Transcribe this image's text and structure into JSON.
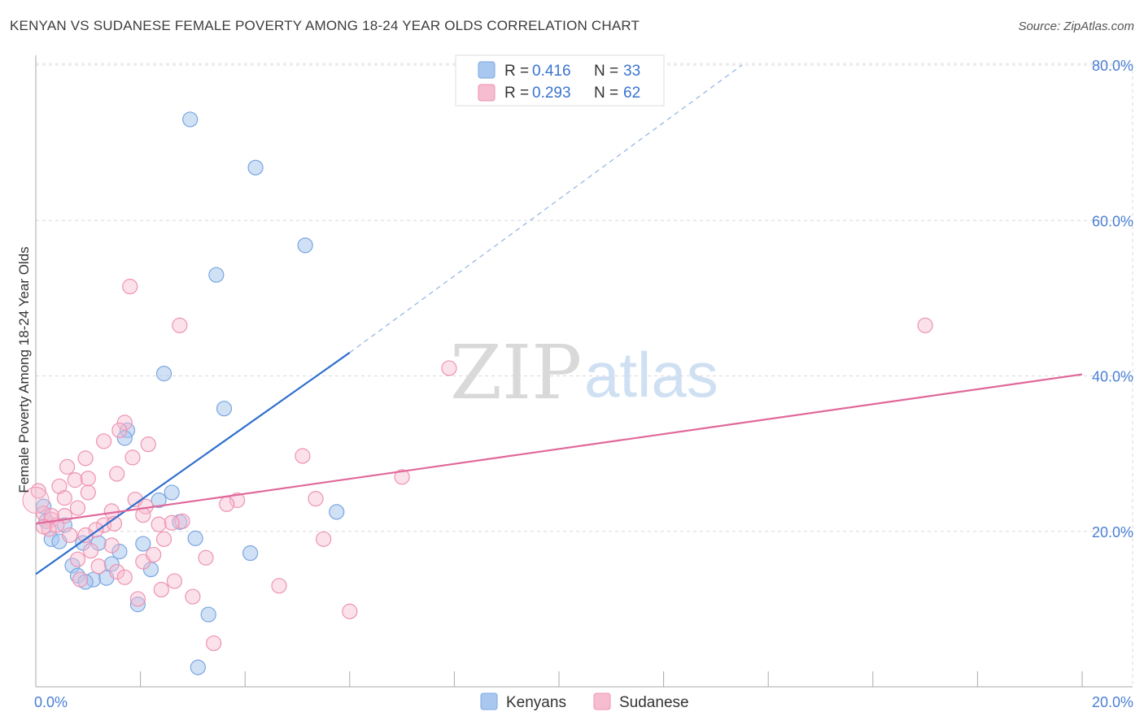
{
  "title": "KENYAN VS SUDANESE FEMALE POVERTY AMONG 18-24 YEAR OLDS CORRELATION CHART",
  "source": "Source: ZipAtlas.com",
  "watermark": {
    "part1": "ZIP",
    "part2": "atlas"
  },
  "legend": {
    "r_label": "R =",
    "n_label": "N =",
    "entries": [
      {
        "name": "Kenyans",
        "r": "0.416",
        "n": "33",
        "color": "#a9c8ef",
        "stroke": "#7aa6e0"
      },
      {
        "name": "Sudanese",
        "r": "0.293",
        "n": "62",
        "color": "#f6bcd0",
        "stroke": "#ee93b3"
      }
    ]
  },
  "chart_data": {
    "type": "scatter",
    "title": "KENYAN VS SUDANESE FEMALE POVERTY AMONG 18-24 YEAR OLDS CORRELATION CHART",
    "xlabel": "",
    "ylabel": "Female Poverty Among 18-24 Year Olds",
    "xlim": [
      0,
      20
    ],
    "ylim": [
      0,
      80
    ],
    "x_tick_labels": [
      "0.0%",
      "20.0%"
    ],
    "y_tick_labels": [
      "20.0%",
      "40.0%",
      "60.0%",
      "80.0%"
    ],
    "y_ticks": [
      20,
      40,
      60,
      80
    ],
    "grid": true,
    "legend_position": "top-center",
    "series": [
      {
        "name": "Kenyans",
        "color": "#4f86d6",
        "points": [
          [
            2.95,
            73.0
          ],
          [
            4.2,
            66.8
          ],
          [
            5.15,
            56.8
          ],
          [
            3.45,
            53.0
          ],
          [
            2.45,
            40.3
          ],
          [
            3.6,
            35.8
          ],
          [
            1.75,
            33.0
          ],
          [
            1.7,
            32.0
          ],
          [
            2.6,
            25.0
          ],
          [
            2.35,
            24.0
          ],
          [
            2.75,
            21.2
          ],
          [
            0.15,
            23.2
          ],
          [
            0.2,
            21.3
          ],
          [
            0.55,
            20.8
          ],
          [
            0.3,
            19.0
          ],
          [
            0.45,
            18.7
          ],
          [
            0.9,
            18.5
          ],
          [
            1.2,
            18.5
          ],
          [
            2.05,
            18.4
          ],
          [
            3.05,
            19.1
          ],
          [
            5.75,
            22.5
          ],
          [
            4.1,
            17.2
          ],
          [
            1.6,
            17.4
          ],
          [
            0.7,
            15.6
          ],
          [
            1.45,
            15.8
          ],
          [
            2.2,
            15.1
          ],
          [
            0.8,
            14.3
          ],
          [
            1.1,
            13.8
          ],
          [
            1.35,
            14.0
          ],
          [
            0.95,
            13.5
          ],
          [
            1.95,
            10.6
          ],
          [
            3.3,
            9.3
          ],
          [
            3.1,
            2.5
          ]
        ],
        "trend": {
          "x": [
            0.0,
            6.0
          ],
          "y": [
            14.5,
            43.0
          ],
          "dash_to": [
            13.5,
            80.0
          ]
        }
      },
      {
        "name": "Sudanese",
        "color": "#e26a97",
        "points": [
          [
            1.8,
            51.5
          ],
          [
            2.75,
            46.5
          ],
          [
            17.0,
            46.5
          ],
          [
            7.9,
            41.0
          ],
          [
            1.7,
            34.0
          ],
          [
            1.6,
            33.0
          ],
          [
            1.3,
            31.6
          ],
          [
            2.15,
            31.2
          ],
          [
            5.1,
            29.7
          ],
          [
            0.95,
            29.4
          ],
          [
            1.85,
            29.5
          ],
          [
            0.6,
            28.3
          ],
          [
            1.55,
            27.4
          ],
          [
            7.0,
            27.0
          ],
          [
            0.75,
            26.6
          ],
          [
            0.45,
            25.8
          ],
          [
            0.05,
            25.2
          ],
          [
            1.0,
            25.0
          ],
          [
            0.55,
            24.3
          ],
          [
            5.35,
            24.2
          ],
          [
            1.9,
            24.1
          ],
          [
            3.85,
            24.0
          ],
          [
            3.65,
            23.5
          ],
          [
            2.1,
            23.2
          ],
          [
            0.8,
            23.0
          ],
          [
            1.45,
            22.6
          ],
          [
            0.15,
            22.3
          ],
          [
            2.05,
            22.1
          ],
          [
            0.55,
            22.0
          ],
          [
            0.3,
            21.5
          ],
          [
            2.8,
            21.3
          ],
          [
            2.6,
            21.1
          ],
          [
            2.35,
            20.9
          ],
          [
            0.4,
            20.8
          ],
          [
            1.3,
            20.8
          ],
          [
            1.5,
            21.0
          ],
          [
            0.25,
            20.3
          ],
          [
            1.15,
            20.2
          ],
          [
            0.65,
            19.5
          ],
          [
            0.95,
            19.5
          ],
          [
            2.45,
            19.0
          ],
          [
            5.5,
            19.0
          ],
          [
            1.45,
            18.2
          ],
          [
            1.05,
            17.5
          ],
          [
            3.25,
            16.6
          ],
          [
            0.8,
            16.4
          ],
          [
            2.05,
            16.1
          ],
          [
            1.2,
            15.5
          ],
          [
            1.55,
            14.8
          ],
          [
            1.7,
            14.1
          ],
          [
            0.85,
            13.8
          ],
          [
            2.65,
            13.6
          ],
          [
            4.65,
            13.0
          ],
          [
            2.4,
            12.5
          ],
          [
            3.0,
            11.6
          ],
          [
            1.95,
            11.3
          ],
          [
            6.0,
            9.7
          ],
          [
            3.4,
            5.6
          ],
          [
            0.3,
            22.0
          ],
          [
            0.15,
            20.6
          ],
          [
            2.25,
            17.0
          ],
          [
            1.0,
            26.8
          ]
        ],
        "trend": {
          "x": [
            0.0,
            20.0
          ],
          "y": [
            21.0,
            40.2
          ]
        }
      }
    ]
  }
}
